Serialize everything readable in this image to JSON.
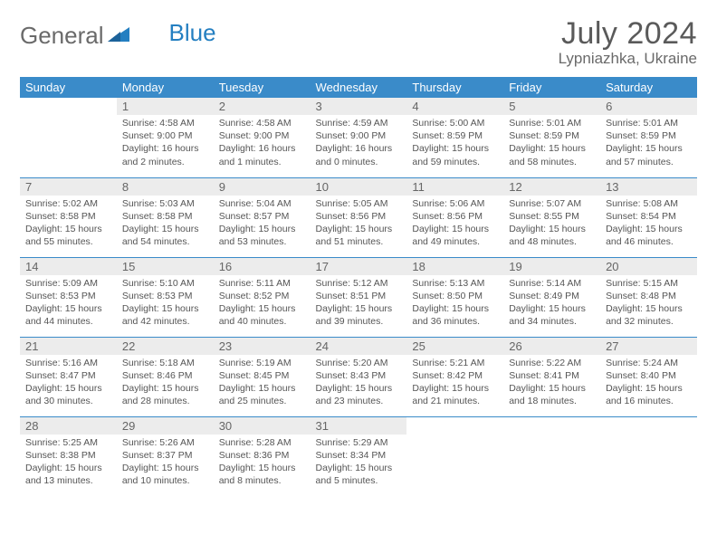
{
  "logo": {
    "part1": "General",
    "part2": "Blue"
  },
  "title": "July 2024",
  "location": "Lypniazhka, Ukraine",
  "colors": {
    "header_bg": "#3a8bc9",
    "header_text": "#ffffff",
    "daynum_bg": "#ececec",
    "grid_line": "#3a8bc9",
    "body_text": "#555555",
    "logo_gray": "#6a6a6a",
    "logo_blue": "#247fc1"
  },
  "columns": [
    "Sunday",
    "Monday",
    "Tuesday",
    "Wednesday",
    "Thursday",
    "Friday",
    "Saturday"
  ],
  "first_weekday_index": 1,
  "days": [
    {
      "n": 1,
      "sunrise": "4:58 AM",
      "sunset": "9:00 PM",
      "daylight": "16 hours and 2 minutes."
    },
    {
      "n": 2,
      "sunrise": "4:58 AM",
      "sunset": "9:00 PM",
      "daylight": "16 hours and 1 minutes."
    },
    {
      "n": 3,
      "sunrise": "4:59 AM",
      "sunset": "9:00 PM",
      "daylight": "16 hours and 0 minutes."
    },
    {
      "n": 4,
      "sunrise": "5:00 AM",
      "sunset": "8:59 PM",
      "daylight": "15 hours and 59 minutes."
    },
    {
      "n": 5,
      "sunrise": "5:01 AM",
      "sunset": "8:59 PM",
      "daylight": "15 hours and 58 minutes."
    },
    {
      "n": 6,
      "sunrise": "5:01 AM",
      "sunset": "8:59 PM",
      "daylight": "15 hours and 57 minutes."
    },
    {
      "n": 7,
      "sunrise": "5:02 AM",
      "sunset": "8:58 PM",
      "daylight": "15 hours and 55 minutes."
    },
    {
      "n": 8,
      "sunrise": "5:03 AM",
      "sunset": "8:58 PM",
      "daylight": "15 hours and 54 minutes."
    },
    {
      "n": 9,
      "sunrise": "5:04 AM",
      "sunset": "8:57 PM",
      "daylight": "15 hours and 53 minutes."
    },
    {
      "n": 10,
      "sunrise": "5:05 AM",
      "sunset": "8:56 PM",
      "daylight": "15 hours and 51 minutes."
    },
    {
      "n": 11,
      "sunrise": "5:06 AM",
      "sunset": "8:56 PM",
      "daylight": "15 hours and 49 minutes."
    },
    {
      "n": 12,
      "sunrise": "5:07 AM",
      "sunset": "8:55 PM",
      "daylight": "15 hours and 48 minutes."
    },
    {
      "n": 13,
      "sunrise": "5:08 AM",
      "sunset": "8:54 PM",
      "daylight": "15 hours and 46 minutes."
    },
    {
      "n": 14,
      "sunrise": "5:09 AM",
      "sunset": "8:53 PM",
      "daylight": "15 hours and 44 minutes."
    },
    {
      "n": 15,
      "sunrise": "5:10 AM",
      "sunset": "8:53 PM",
      "daylight": "15 hours and 42 minutes."
    },
    {
      "n": 16,
      "sunrise": "5:11 AM",
      "sunset": "8:52 PM",
      "daylight": "15 hours and 40 minutes."
    },
    {
      "n": 17,
      "sunrise": "5:12 AM",
      "sunset": "8:51 PM",
      "daylight": "15 hours and 39 minutes."
    },
    {
      "n": 18,
      "sunrise": "5:13 AM",
      "sunset": "8:50 PM",
      "daylight": "15 hours and 36 minutes."
    },
    {
      "n": 19,
      "sunrise": "5:14 AM",
      "sunset": "8:49 PM",
      "daylight": "15 hours and 34 minutes."
    },
    {
      "n": 20,
      "sunrise": "5:15 AM",
      "sunset": "8:48 PM",
      "daylight": "15 hours and 32 minutes."
    },
    {
      "n": 21,
      "sunrise": "5:16 AM",
      "sunset": "8:47 PM",
      "daylight": "15 hours and 30 minutes."
    },
    {
      "n": 22,
      "sunrise": "5:18 AM",
      "sunset": "8:46 PM",
      "daylight": "15 hours and 28 minutes."
    },
    {
      "n": 23,
      "sunrise": "5:19 AM",
      "sunset": "8:45 PM",
      "daylight": "15 hours and 25 minutes."
    },
    {
      "n": 24,
      "sunrise": "5:20 AM",
      "sunset": "8:43 PM",
      "daylight": "15 hours and 23 minutes."
    },
    {
      "n": 25,
      "sunrise": "5:21 AM",
      "sunset": "8:42 PM",
      "daylight": "15 hours and 21 minutes."
    },
    {
      "n": 26,
      "sunrise": "5:22 AM",
      "sunset": "8:41 PM",
      "daylight": "15 hours and 18 minutes."
    },
    {
      "n": 27,
      "sunrise": "5:24 AM",
      "sunset": "8:40 PM",
      "daylight": "15 hours and 16 minutes."
    },
    {
      "n": 28,
      "sunrise": "5:25 AM",
      "sunset": "8:38 PM",
      "daylight": "15 hours and 13 minutes."
    },
    {
      "n": 29,
      "sunrise": "5:26 AM",
      "sunset": "8:37 PM",
      "daylight": "15 hours and 10 minutes."
    },
    {
      "n": 30,
      "sunrise": "5:28 AM",
      "sunset": "8:36 PM",
      "daylight": "15 hours and 8 minutes."
    },
    {
      "n": 31,
      "sunrise": "5:29 AM",
      "sunset": "8:34 PM",
      "daylight": "15 hours and 5 minutes."
    }
  ],
  "labels": {
    "sunrise": "Sunrise:",
    "sunset": "Sunset:",
    "daylight": "Daylight:"
  }
}
